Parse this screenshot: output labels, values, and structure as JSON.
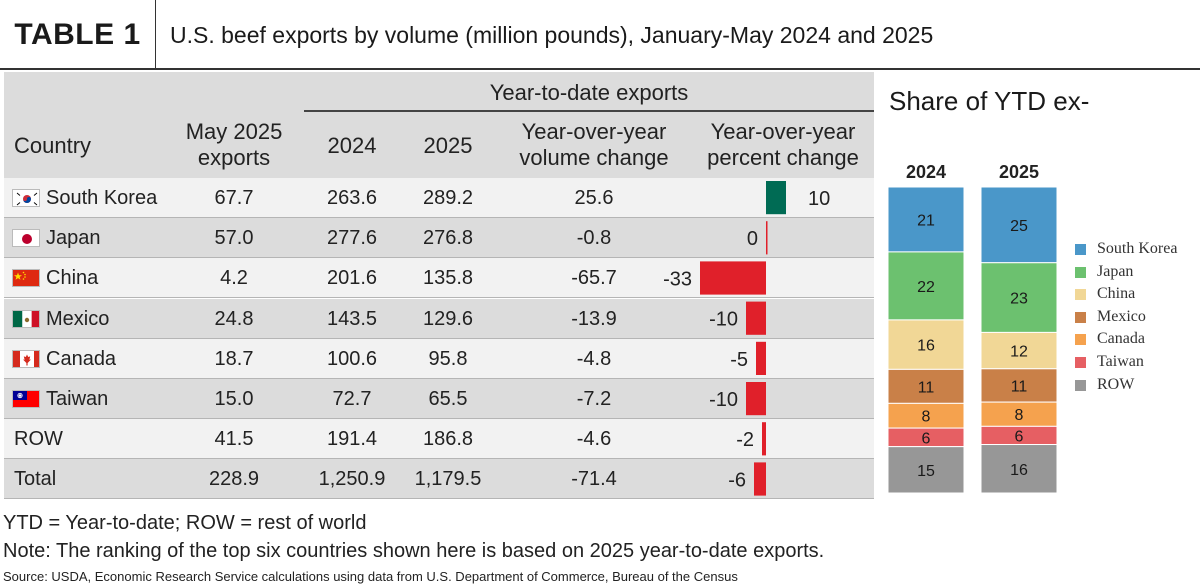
{
  "header": {
    "label": "TABLE 1",
    "title": "U.S. beef exports by volume (million pounds), January-May 2024 and 2025"
  },
  "columns": {
    "country": "Country",
    "may_line1": "May 2025",
    "may_line2": "exports",
    "ytd_group": "Year-to-date exports",
    "y2024": "2024",
    "y2025": "2025",
    "vol_line1": "Year-over-year",
    "vol_line2": "volume change",
    "pct_line1": "Year-over-year",
    "pct_line2": "percent change"
  },
  "rows": [
    {
      "country": "South Korea",
      "flag": "korea",
      "may": "67.7",
      "y2024": "263.6",
      "y2025": "289.2",
      "vol": "25.6",
      "pct": 10,
      "pct_label": "10"
    },
    {
      "country": "Japan",
      "flag": "japan",
      "may": "57.0",
      "y2024": "277.6",
      "y2025": "276.8",
      "vol": "-0.8",
      "pct": 0,
      "pct_label": "0"
    },
    {
      "country": "China",
      "flag": "china",
      "may": "4.2",
      "y2024": "201.6",
      "y2025": "135.8",
      "vol": "-65.7",
      "pct": -33,
      "pct_label": "-33"
    },
    {
      "country": "Mexico",
      "flag": "mexico",
      "may": "24.8",
      "y2024": "143.5",
      "y2025": "129.6",
      "vol": "-13.9",
      "pct": -10,
      "pct_label": "-10"
    },
    {
      "country": "Canada",
      "flag": "canada",
      "may": "18.7",
      "y2024": "100.6",
      "y2025": "95.8",
      "vol": "-4.8",
      "pct": -5,
      "pct_label": "-5"
    },
    {
      "country": "Taiwan",
      "flag": "taiwan",
      "may": "15.0",
      "y2024": "72.7",
      "y2025": "65.5",
      "vol": "-7.2",
      "pct": -10,
      "pct_label": "-10"
    },
    {
      "country": "ROW",
      "flag": "",
      "may": "41.5",
      "y2024": "191.4",
      "y2025": "186.8",
      "vol": "-4.6",
      "pct": -2,
      "pct_label": "-2"
    },
    {
      "country": "Total",
      "flag": "",
      "may": "228.9",
      "y2024": "1,250.9",
      "y2025": "1,179.5",
      "vol": "-71.4",
      "pct": -6,
      "pct_label": "-6"
    }
  ],
  "colors": {
    "positive_bar": "#006b54",
    "negative_bar": "#e0202a"
  },
  "chart_data": [
    {
      "type": "table",
      "title": "U.S. beef exports by volume (million pounds), January-May 2024 and 2025",
      "columns": [
        "Country",
        "May 2025 exports",
        "2024",
        "2025",
        "Year-over-year volume change",
        "Year-over-year percent change"
      ],
      "bar_column": "Year-over-year percent change",
      "rows": [
        [
          "South Korea",
          67.7,
          263.6,
          289.2,
          25.6,
          10
        ],
        [
          "Japan",
          57.0,
          277.6,
          276.8,
          -0.8,
          0
        ],
        [
          "China",
          4.2,
          201.6,
          135.8,
          -65.7,
          -33
        ],
        [
          "Mexico",
          24.8,
          143.5,
          129.6,
          -13.9,
          -10
        ],
        [
          "Canada",
          18.7,
          100.6,
          95.8,
          -4.8,
          -5
        ],
        [
          "Taiwan",
          15.0,
          72.7,
          65.5,
          -7.2,
          -10
        ],
        [
          "ROW",
          41.5,
          191.4,
          186.8,
          -4.6,
          -2
        ],
        [
          "Total",
          228.9,
          1250.9,
          1179.5,
          -71.4,
          -6
        ]
      ]
    },
    {
      "type": "bar",
      "stacked": true,
      "title": "Share of YTD ex-",
      "categories": [
        "2024",
        "2025"
      ],
      "series": [
        {
          "name": "South Korea",
          "values": [
            21,
            25
          ],
          "color": "#4a97c9"
        },
        {
          "name": "Japan",
          "values": [
            22,
            23
          ],
          "color": "#6cc16f"
        },
        {
          "name": "China",
          "values": [
            16,
            12
          ],
          "color": "#f1d796"
        },
        {
          "name": "Mexico",
          "values": [
            11,
            11
          ],
          "color": "#c98048"
        },
        {
          "name": "Canada",
          "values": [
            8,
            8
          ],
          "color": "#f5a24e"
        },
        {
          "name": "Taiwan",
          "values": [
            6,
            6
          ],
          "color": "#e65f63"
        },
        {
          "name": "ROW",
          "values": [
            15,
            16
          ],
          "color": "#979797"
        }
      ],
      "legend": "right"
    }
  ],
  "footnotes": {
    "abbrev": "YTD = Year-to-date; ROW = rest of world",
    "note": "Note: The ranking of the top six countries shown here is based on 2025 year-to-date exports.",
    "source": "Source: USDA, Economic Research Service calculations using data from U.S. Department of Commerce, Bureau of the Census"
  }
}
